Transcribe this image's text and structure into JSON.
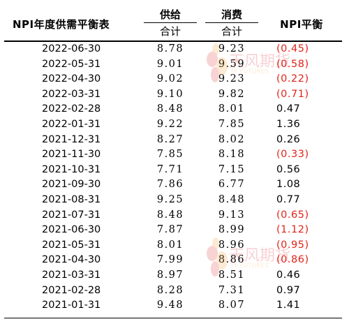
{
  "header": {
    "title": "NPI年度供需平衡表",
    "supply_top": "供给",
    "supply_bottom": "合计",
    "consume_top": "消费",
    "consume_bottom": "合计",
    "npi": "NPI平衡"
  },
  "watermark": {
    "cn": "天风期货",
    "en": "TF FUTURES"
  },
  "rows": [
    {
      "date": "2022-06-30",
      "supply": "8.78",
      "consume": "9.23",
      "npi": "(0.45)",
      "negative": true
    },
    {
      "date": "2022-05-31",
      "supply": "9.01",
      "consume": "9.59",
      "npi": "(0.58)",
      "negative": true
    },
    {
      "date": "2022-04-30",
      "supply": "9.02",
      "consume": "9.23",
      "npi": "(0.22)",
      "negative": true
    },
    {
      "date": "2022-03-31",
      "supply": "9.10",
      "consume": "9.82",
      "npi": "(0.71)",
      "negative": true
    },
    {
      "date": "2022-02-28",
      "supply": "8.48",
      "consume": "8.01",
      "npi": "0.47",
      "negative": false
    },
    {
      "date": "2022-01-31",
      "supply": "9.22",
      "consume": "7.85",
      "npi": "1.36",
      "negative": false
    },
    {
      "date": "2021-12-31",
      "supply": "8.27",
      "consume": "8.02",
      "npi": "0.26",
      "negative": false
    },
    {
      "date": "2021-11-30",
      "supply": "7.85",
      "consume": "8.18",
      "npi": "(0.33)",
      "negative": true
    },
    {
      "date": "2021-10-31",
      "supply": "7.71",
      "consume": "7.15",
      "npi": "0.56",
      "negative": false
    },
    {
      "date": "2021-09-30",
      "supply": "7.86",
      "consume": "6.77",
      "npi": "1.08",
      "negative": false
    },
    {
      "date": "2021-08-31",
      "supply": "9.25",
      "consume": "8.48",
      "npi": "0.77",
      "negative": false
    },
    {
      "date": "2021-07-31",
      "supply": "8.48",
      "consume": "9.13",
      "npi": "(0.65)",
      "negative": true
    },
    {
      "date": "2021-06-30",
      "supply": "7.87",
      "consume": "8.99",
      "npi": "(1.12)",
      "negative": true
    },
    {
      "date": "2021-05-31",
      "supply": "8.01",
      "consume": "8.96",
      "npi": "(0.95)",
      "negative": true
    },
    {
      "date": "2021-04-30",
      "supply": "7.99",
      "consume": "8.86",
      "npi": "(0.86)",
      "negative": true
    },
    {
      "date": "2021-03-31",
      "supply": "8.97",
      "consume": "8.51",
      "npi": "0.46",
      "negative": false
    },
    {
      "date": "2021-02-28",
      "supply": "8.28",
      "consume": "7.31",
      "npi": "0.97",
      "negative": false
    },
    {
      "date": "2021-01-31",
      "supply": "9.48",
      "consume": "8.07",
      "npi": "1.41",
      "negative": false
    }
  ],
  "colors": {
    "negative": "#e0241b",
    "positive": "#000000"
  }
}
